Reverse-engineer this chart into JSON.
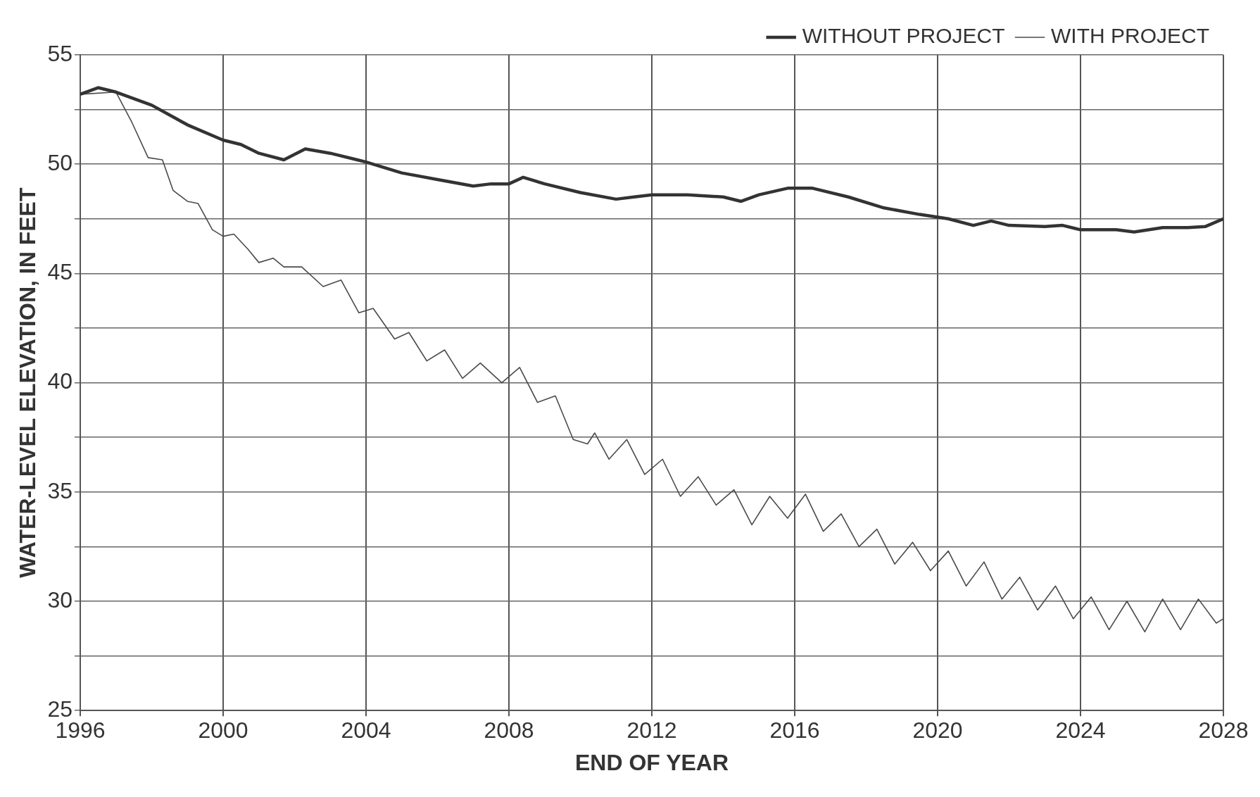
{
  "chart_data": {
    "type": "line",
    "xlabel": "END OF YEAR",
    "ylabel": "WATER-LEVEL ELEVATION, IN FEET",
    "xlim": [
      1996,
      2028
    ],
    "xticks": [
      1996,
      2000,
      2004,
      2008,
      2012,
      2016,
      2020,
      2024,
      2028
    ],
    "ylim": [
      25,
      55
    ],
    "yticks": [
      25,
      {
        "value": 27.5,
        "label": null
      },
      30,
      {
        "value": 32.5,
        "label": null
      },
      35,
      {
        "value": 37.5,
        "label": null
      },
      40,
      {
        "value": 42.5,
        "label": null
      },
      45,
      {
        "value": 47.5,
        "label": null
      },
      50,
      {
        "value": 52.5,
        "label": null
      },
      55
    ],
    "grid": true,
    "legend": "top right",
    "marker": "none",
    "line_style": "solid",
    "series": [
      {
        "name": "WITHOUT PROJECT",
        "color": "#333333",
        "x": [
          1996,
          1996.5,
          1997,
          1998,
          1999,
          2000,
          2000.5,
          2001,
          2001.7,
          2002.3,
          2003,
          2004,
          2005,
          2006,
          2007,
          2007.5,
          2008,
          2008.4,
          2009,
          2010,
          2011,
          2011.5,
          2012,
          2013,
          2014,
          2014.5,
          2015,
          2015.8,
          2016.5,
          2017.5,
          2018.5,
          2019.5,
          2020.3,
          2021,
          2021.5,
          2022,
          2023,
          2023.5,
          2024,
          2025,
          2025.5,
          2026.3,
          2027,
          2027.5,
          2028
        ],
        "values": [
          53.2,
          53.5,
          53.3,
          52.7,
          51.8,
          51.1,
          50.9,
          50.5,
          50.2,
          50.7,
          50.5,
          50.1,
          49.6,
          49.3,
          49.0,
          49.1,
          49.1,
          49.4,
          49.1,
          48.7,
          48.4,
          48.5,
          48.6,
          48.6,
          48.5,
          48.3,
          48.6,
          48.9,
          48.9,
          48.5,
          48.0,
          47.7,
          47.5,
          47.2,
          47.4,
          47.2,
          47.15,
          47.2,
          47.0,
          47.0,
          46.9,
          47.1,
          47.1,
          47.15,
          47.5
        ]
      },
      {
        "name": "WITH PROJECT",
        "color": "#4a4a4a",
        "x": [
          1996,
          1997,
          1997.45,
          1997.9,
          1998.3,
          1998.6,
          1999,
          1999.3,
          1999.7,
          2000,
          2000.3,
          2000.7,
          2001,
          2001.4,
          2001.7,
          2002.2,
          2002.8,
          2003.3,
          2003.8,
          2004.2,
          2004.8,
          2005.2,
          2005.7,
          2006.2,
          2006.7,
          2007.2,
          2007.8,
          2008.3,
          2008.8,
          2009.3,
          2009.8,
          2010.2,
          2010.4,
          2010.8,
          2011.3,
          2011.8,
          2012.3,
          2012.8,
          2013.3,
          2013.8,
          2014.3,
          2014.8,
          2015.3,
          2015.8,
          2016.3,
          2016.8,
          2017.3,
          2017.8,
          2018.3,
          2018.8,
          2019.3,
          2019.8,
          2020.3,
          2020.8,
          2021.3,
          2021.8,
          2022.3,
          2022.8,
          2023.3,
          2023.8,
          2024.3,
          2024.8,
          2025.3,
          2025.8,
          2026.3,
          2026.8,
          2027.3,
          2027.8,
          2028
        ],
        "values": [
          53.2,
          53.3,
          51.9,
          50.3,
          50.2,
          48.8,
          48.3,
          48.2,
          47.0,
          46.7,
          46.8,
          46.1,
          45.5,
          45.7,
          45.3,
          45.3,
          44.4,
          44.7,
          43.2,
          43.4,
          42.0,
          42.3,
          41.0,
          41.5,
          40.2,
          40.9,
          40.0,
          40.7,
          39.1,
          39.4,
          37.4,
          37.2,
          37.7,
          36.5,
          37.4,
          35.8,
          36.5,
          34.8,
          35.7,
          34.4,
          35.1,
          33.5,
          34.8,
          33.8,
          34.9,
          33.2,
          34.0,
          32.5,
          33.3,
          31.7,
          32.7,
          31.4,
          32.3,
          30.7,
          31.8,
          30.1,
          31.1,
          29.6,
          30.7,
          29.2,
          30.2,
          28.7,
          30.0,
          28.6,
          30.1,
          28.7,
          30.1,
          29.0,
          29.2
        ]
      }
    ]
  }
}
